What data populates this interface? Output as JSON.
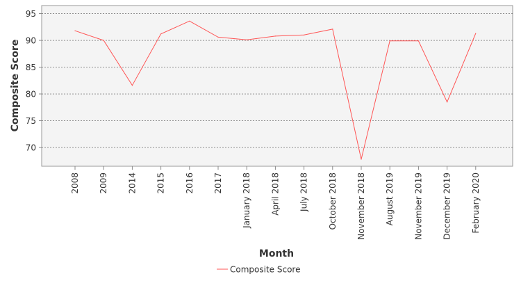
{
  "chart_data": {
    "type": "line",
    "title": "",
    "xlabel": "Month",
    "ylabel": "Composite Score",
    "categories": [
      "2008",
      "2009",
      "2014",
      "2015",
      "2016",
      "2017",
      "January 2018",
      "April 2018",
      "July 2018",
      "October 2018",
      "November 2018",
      "August 2019",
      "November 2019",
      "December 2019",
      "February 2020"
    ],
    "series": [
      {
        "name": "Composite Score",
        "color": "#ff5555",
        "values": [
          91.8,
          90.0,
          81.6,
          91.2,
          93.6,
          90.6,
          90.1,
          90.8,
          91.0,
          92.1,
          67.8,
          89.9,
          89.9,
          78.5,
          91.3
        ]
      }
    ],
    "yticks": [
      70,
      75,
      80,
      85,
      90,
      95
    ],
    "ylim": [
      66.5,
      96.5
    ],
    "grid": true,
    "legend": "bottom-center",
    "colors": {
      "plot_background": "#f4f4f4",
      "grid": "#555555",
      "axis_text": "#333333"
    }
  }
}
